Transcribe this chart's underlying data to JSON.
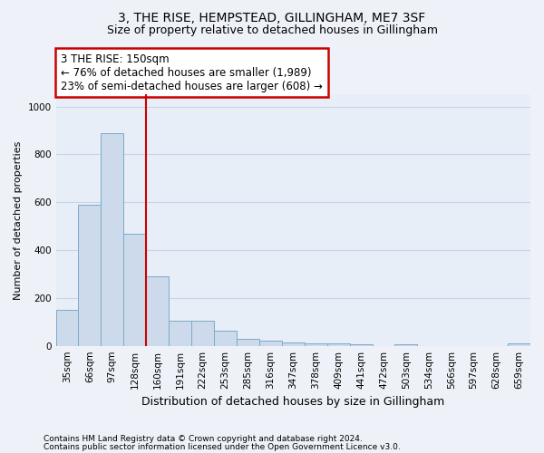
{
  "title_line1": "3, THE RISE, HEMPSTEAD, GILLINGHAM, ME7 3SF",
  "title_line2": "Size of property relative to detached houses in Gillingham",
  "xlabel": "Distribution of detached houses by size in Gillingham",
  "ylabel": "Number of detached properties",
  "footnote1": "Contains HM Land Registry data © Crown copyright and database right 2024.",
  "footnote2": "Contains public sector information licensed under the Open Government Licence v3.0.",
  "bar_labels": [
    "35sqm",
    "66sqm",
    "97sqm",
    "128sqm",
    "160sqm",
    "191sqm",
    "222sqm",
    "253sqm",
    "285sqm",
    "316sqm",
    "347sqm",
    "378sqm",
    "409sqm",
    "441sqm",
    "472sqm",
    "503sqm",
    "534sqm",
    "566sqm",
    "597sqm",
    "628sqm",
    "659sqm"
  ],
  "bar_values": [
    150,
    590,
    890,
    470,
    290,
    105,
    105,
    65,
    28,
    22,
    15,
    10,
    10,
    8,
    0,
    5,
    0,
    0,
    0,
    0,
    10
  ],
  "bar_color": "#ccdaeb",
  "bar_edgecolor": "#7aaac8",
  "annotation_text": "3 THE RISE: 150sqm\n← 76% of detached houses are smaller (1,989)\n23% of semi-detached houses are larger (608) →",
  "annotation_box_edgecolor": "#cc0000",
  "vline_color": "#cc0000",
  "ylim": [
    0,
    1050
  ],
  "yticks": [
    0,
    200,
    400,
    600,
    800,
    1000
  ],
  "bg_color": "#eef2f8",
  "plot_bg_color": "#e8eef7",
  "grid_color": "#c8d4e8",
  "title1_fontsize": 10,
  "title2_fontsize": 9,
  "annot_fontsize": 8.5,
  "ylabel_fontsize": 8,
  "xlabel_fontsize": 9,
  "footnote_fontsize": 6.5,
  "tick_fontsize": 7.5
}
